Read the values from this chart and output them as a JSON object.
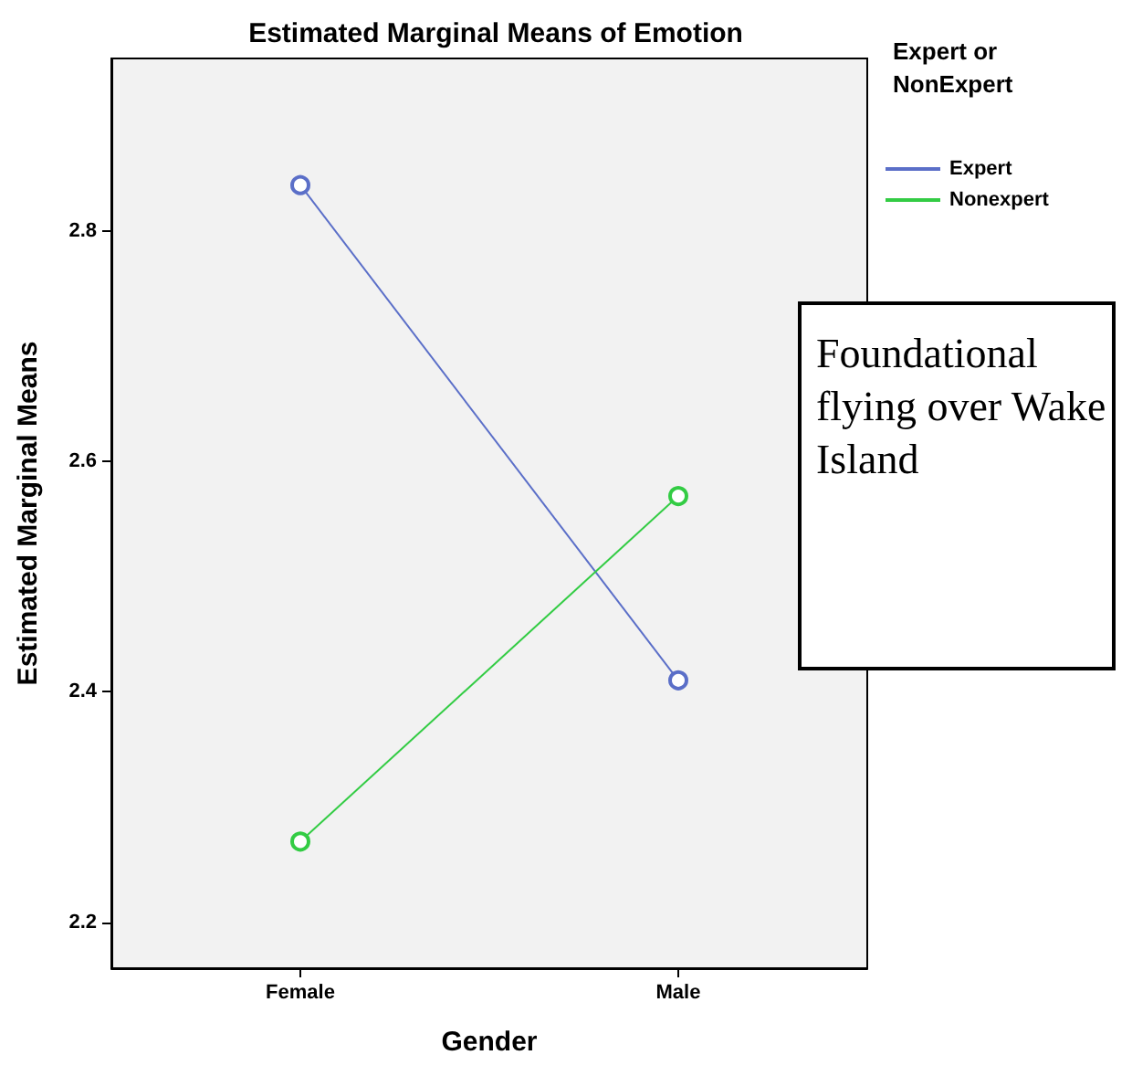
{
  "chart_data": {
    "type": "line",
    "title": "Estimated Marginal Means of Emotion",
    "xlabel": "Gender",
    "ylabel": "Estimated Marginal Means",
    "legend_title": "Expert or NonExpert",
    "categories": [
      "Female",
      "Male"
    ],
    "series": [
      {
        "name": "Expert",
        "color": "#5b6fc8",
        "values": [
          2.84,
          2.41
        ]
      },
      {
        "name": "Nonexpert",
        "color": "#33cc44",
        "values": [
          2.27,
          2.57
        ]
      }
    ],
    "ylim": [
      2.16,
      2.95
    ],
    "yticks": [
      2.2,
      2.4,
      2.6,
      2.8
    ],
    "grid": false,
    "legend": "top right",
    "marker": "circle",
    "line_style": "solid",
    "annotations": [
      "Foundational flying over Wake Island"
    ]
  }
}
